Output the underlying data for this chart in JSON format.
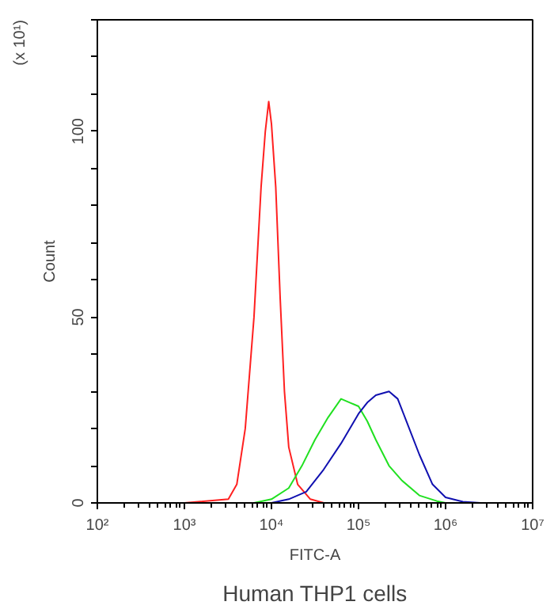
{
  "chart_data": {
    "type": "line",
    "title": "Human THP1 cells",
    "xlabel": "FITC-A",
    "ylabel": "Count",
    "annotations": [
      "(x 10¹)"
    ],
    "log": "x",
    "grid": false,
    "marker": "none",
    "line_style": "solid",
    "xlim": [
      100,
      10000000
    ],
    "ylim": [
      0,
      130
    ],
    "xticks": [
      {
        "value": 100,
        "label": "10²"
      },
      {
        "value": 1000,
        "label": "10³"
      },
      {
        "value": 10000,
        "label": "10⁴"
      },
      {
        "value": 100000,
        "label": "10⁵"
      },
      {
        "value": 1000000,
        "label": "10⁶"
      },
      {
        "value": 10000000,
        "label": "10⁷"
      }
    ],
    "yticks": [
      0,
      50,
      100
    ],
    "series": [
      {
        "color": "#ff2020",
        "x": [
          1000,
          3200,
          4000,
          5000,
          6300,
          7600,
          8500,
          9300,
          10000,
          11200,
          12600,
          14100,
          15800,
          20000,
          28000,
          40000
        ],
        "values": [
          0,
          1,
          5,
          20,
          50,
          85,
          100,
          108,
          102,
          85,
          55,
          30,
          15,
          5,
          1,
          0
        ]
      },
      {
        "color": "#20e020",
        "x": [
          6300,
          10000,
          15800,
          22400,
          31600,
          44700,
          63000,
          79400,
          100000,
          126000,
          158000,
          224000,
          316000,
          500000,
          794000,
          1000000
        ],
        "values": [
          0,
          1,
          4,
          10,
          17,
          23,
          28,
          27,
          26,
          22,
          17,
          10,
          6,
          2,
          0.5,
          0
        ]
      },
      {
        "color": "#1010b0",
        "x": [
          10000,
          15800,
          25100,
          39800,
          63000,
          100000,
          126000,
          158000,
          224000,
          282000,
          355000,
          500000,
          708000,
          1000000,
          1580000,
          2510000
        ],
        "values": [
          0,
          1,
          3,
          9,
          16,
          24,
          27,
          29,
          30,
          28,
          22,
          13,
          5,
          1.5,
          0.3,
          0
        ]
      }
    ]
  }
}
